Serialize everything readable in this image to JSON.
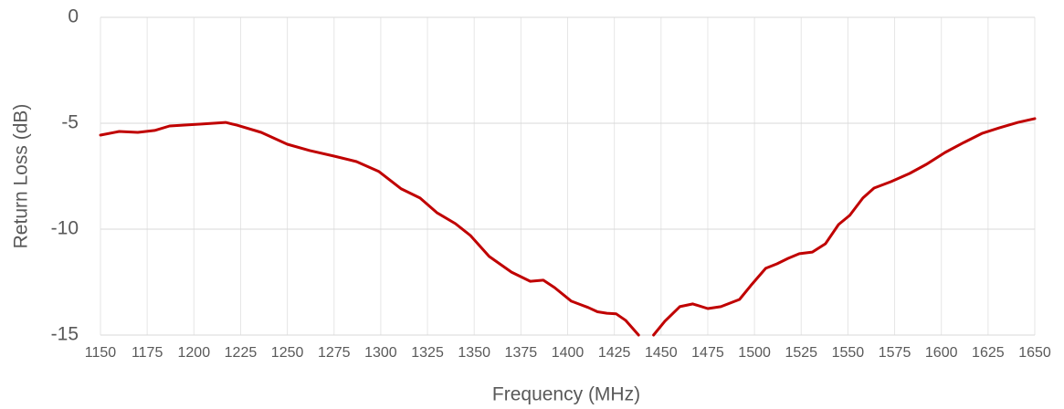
{
  "chart_data": {
    "type": "line",
    "x_label": "Frequency (MHz)",
    "y_label": "Return Loss (dB)",
    "xlim": [
      1150,
      1650
    ],
    "xticks": [
      1150,
      1175,
      1200,
      1225,
      1250,
      1275,
      1300,
      1325,
      1350,
      1375,
      1400,
      1425,
      1450,
      1475,
      1500,
      1525,
      1550,
      1575,
      1600,
      1625,
      1650
    ],
    "ylim": [
      -15,
      0
    ],
    "yticks": [
      -15,
      -10,
      -5,
      0
    ],
    "grid": true,
    "series": [
      {
        "color": "#c00000",
        "x": [
          1150,
          1160,
          1170,
          1179,
          1187,
          1194,
          1204,
          1217,
          1223,
          1236,
          1250,
          1262,
          1275,
          1287,
          1299,
          1311,
          1321,
          1330,
          1340,
          1348,
          1358,
          1370,
          1380,
          1387,
          1393,
          1402,
          1411,
          1416,
          1421,
          1426,
          1431,
          1438,
          1441,
          1446,
          1452,
          1460,
          1467,
          1475,
          1482,
          1492,
          1498,
          1506,
          1512,
          1518,
          1524,
          1531,
          1538,
          1545,
          1551,
          1558,
          1564,
          1573,
          1583,
          1592,
          1602,
          1612,
          1622,
          1631,
          1641,
          1650
        ],
        "values": [
          -5.56,
          -5.39,
          -5.43,
          -5.34,
          -5.13,
          -5.09,
          -5.04,
          -4.96,
          -5.09,
          -5.43,
          -5.99,
          -6.29,
          -6.55,
          -6.81,
          -7.28,
          -8.1,
          -8.53,
          -9.22,
          -9.74,
          -10.3,
          -11.29,
          -12.03,
          -12.46,
          -12.41,
          -12.76,
          -13.4,
          -13.7,
          -13.9,
          -13.97,
          -14.0,
          -14.3,
          -15.0,
          null,
          -15.0,
          -14.35,
          -13.66,
          -13.53,
          -13.75,
          -13.66,
          -13.32,
          -12.67,
          -11.85,
          -11.64,
          -11.38,
          -11.16,
          -11.08,
          -10.69,
          -9.78,
          -9.35,
          -8.53,
          -8.06,
          -7.76,
          -7.37,
          -6.94,
          -6.38,
          -5.91,
          -5.47,
          -5.22,
          -4.96,
          -4.78
        ]
      }
    ]
  }
}
